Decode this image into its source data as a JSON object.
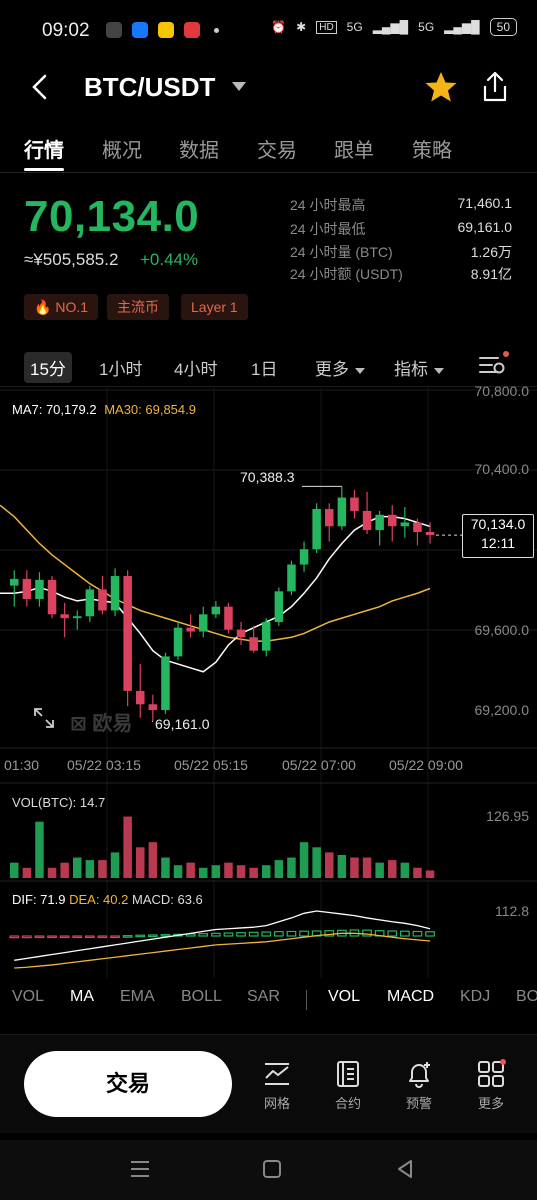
{
  "status_bar": {
    "time": "09:02",
    "battery": "50",
    "network": "5G"
  },
  "header": {
    "pair": "BTC/USDT"
  },
  "tabs": [
    "行情",
    "概况",
    "数据",
    "交易",
    "跟单",
    "策略"
  ],
  "price": {
    "last": "70,134.0",
    "fiat": "≈¥505,585.2",
    "change_pct": "+0.44%",
    "up_color": "#25b660",
    "down_color": "#d9435f"
  },
  "stats": [
    {
      "label": "24 小时最高",
      "value": "71,460.1"
    },
    {
      "label": "24 小时最低",
      "value": "69,161.0"
    },
    {
      "label": "24 小时量 (BTC)",
      "value": "1.26万"
    },
    {
      "label": "24 小时额 (USDT)",
      "value": "8.91亿"
    }
  ],
  "badges": [
    "NO.1",
    "主流币",
    "Layer 1"
  ],
  "intervals": {
    "items": [
      "15分",
      "1小时",
      "4小时",
      "1日"
    ],
    "more": "更多",
    "indicator": "指标"
  },
  "ma_legend": {
    "ma7": "MA7: 70,179.2",
    "ma30": "MA30: 69,854.9"
  },
  "price_axis": [
    "70,800.0",
    "70,400.0",
    "69,600.0",
    "69,200.0"
  ],
  "last_price_tag": {
    "price": "70,134.0",
    "countdown": "12:11"
  },
  "annotations": {
    "high": "70,388.3",
    "low": "69,161.0"
  },
  "watermark": "欧易",
  "time_axis": [
    "01:30",
    "05/22 03:15",
    "05/22 05:15",
    "05/22 07:00",
    "05/22 09:00"
  ],
  "vol": {
    "label": "VOL(BTC): 14.7",
    "axis_max": "126.95"
  },
  "macd": {
    "dif": "DIF: 71.9",
    "dea": "DEA: 40.2",
    "macd": "MACD: 63.6",
    "axis_max": "112.8"
  },
  "indicator_tabs": [
    "VOL",
    "MA",
    "EMA",
    "BOLL",
    "SAR",
    "VOL",
    "MACD",
    "KDJ",
    "BO"
  ],
  "bottom_bar": {
    "trade": "交易",
    "items": [
      {
        "icon": "grid-chart-icon",
        "label": "网格"
      },
      {
        "icon": "contract-icon",
        "label": "合约"
      },
      {
        "icon": "alert-bell-icon",
        "label": "预警"
      },
      {
        "icon": "more-apps-icon",
        "label": "更多"
      }
    ]
  },
  "chart_data": {
    "type": "candlestick",
    "interval": "15m",
    "title": "",
    "ylim": [
      69100,
      70850
    ],
    "candles": [
      {
        "o": 69870,
        "h": 69950,
        "l": 69760,
        "c": 69905
      },
      {
        "o": 69905,
        "h": 69950,
        "l": 69760,
        "c": 69800
      },
      {
        "o": 69800,
        "h": 69940,
        "l": 69760,
        "c": 69900
      },
      {
        "o": 69900,
        "h": 69920,
        "l": 69700,
        "c": 69720
      },
      {
        "o": 69720,
        "h": 69780,
        "l": 69600,
        "c": 69700
      },
      {
        "o": 69700,
        "h": 69740,
        "l": 69640,
        "c": 69710
      },
      {
        "o": 69710,
        "h": 69870,
        "l": 69680,
        "c": 69850
      },
      {
        "o": 69850,
        "h": 69920,
        "l": 69720,
        "c": 69740
      },
      {
        "o": 69740,
        "h": 69960,
        "l": 69710,
        "c": 69920
      },
      {
        "o": 69920,
        "h": 69950,
        "l": 69240,
        "c": 69320
      },
      {
        "o": 69320,
        "h": 69460,
        "l": 69180,
        "c": 69250
      },
      {
        "o": 69250,
        "h": 69300,
        "l": 69161,
        "c": 69220
      },
      {
        "o": 69220,
        "h": 69520,
        "l": 69200,
        "c": 69500
      },
      {
        "o": 69500,
        "h": 69680,
        "l": 69480,
        "c": 69650
      },
      {
        "o": 69650,
        "h": 69720,
        "l": 69600,
        "c": 69630
      },
      {
        "o": 69630,
        "h": 69760,
        "l": 69600,
        "c": 69720
      },
      {
        "o": 69720,
        "h": 69790,
        "l": 69700,
        "c": 69760
      },
      {
        "o": 69760,
        "h": 69780,
        "l": 69620,
        "c": 69640
      },
      {
        "o": 69640,
        "h": 69680,
        "l": 69560,
        "c": 69600
      },
      {
        "o": 69600,
        "h": 69660,
        "l": 69520,
        "c": 69530
      },
      {
        "o": 69530,
        "h": 69700,
        "l": 69500,
        "c": 69680
      },
      {
        "o": 69680,
        "h": 69860,
        "l": 69660,
        "c": 69840
      },
      {
        "o": 69840,
        "h": 70000,
        "l": 69820,
        "c": 69980
      },
      {
        "o": 69980,
        "h": 70100,
        "l": 69940,
        "c": 70060
      },
      {
        "o": 70060,
        "h": 70300,
        "l": 70040,
        "c": 70270
      },
      {
        "o": 70270,
        "h": 70300,
        "l": 70100,
        "c": 70180
      },
      {
        "o": 70180,
        "h": 70388.3,
        "l": 70160,
        "c": 70330
      },
      {
        "o": 70330,
        "h": 70370,
        "l": 70220,
        "c": 70260
      },
      {
        "o": 70260,
        "h": 70360,
        "l": 70140,
        "c": 70160
      },
      {
        "o": 70160,
        "h": 70260,
        "l": 70080,
        "c": 70240
      },
      {
        "o": 70240,
        "h": 70290,
        "l": 70100,
        "c": 70180
      },
      {
        "o": 70180,
        "h": 70280,
        "l": 70120,
        "c": 70200
      },
      {
        "o": 70200,
        "h": 70220,
        "l": 70080,
        "c": 70150
      },
      {
        "o": 70150,
        "h": 70200,
        "l": 70090,
        "c": 70134
      }
    ],
    "ma7": [
      69830,
      69840,
      69860,
      69840,
      69810,
      69790,
      69800,
      69790,
      69780,
      69700,
      69620,
      69530,
      69480,
      69460,
      69440,
      69420,
      69470,
      69560,
      69620,
      69650,
      69680,
      69710,
      69760,
      69830,
      69910,
      70010,
      70090,
      70160,
      70200,
      70230,
      70230,
      70220,
      70200,
      70179.2
    ],
    "ma30": [
      70230,
      70160,
      70090,
      70030,
      69980,
      69930,
      69880,
      69840,
      69800,
      69770,
      69740,
      69720,
      69700,
      69680,
      69660,
      69640,
      69620,
      69600,
      69590,
      69580,
      69580,
      69590,
      69600,
      69620,
      69650,
      69680,
      69700,
      69720,
      69740,
      69760,
      69790,
      69810,
      69830,
      69854.9
    ],
    "volume": [
      30,
      20,
      110,
      20,
      30,
      40,
      35,
      35,
      50,
      120,
      60,
      70,
      40,
      25,
      30,
      20,
      25,
      30,
      25,
      20,
      25,
      35,
      40,
      70,
      60,
      50,
      45,
      40,
      40,
      30,
      35,
      30,
      20,
      14.7
    ],
    "volume_max": 126.95,
    "macd_hist": [
      -25,
      -25,
      -22,
      -20,
      -18,
      -15,
      -10,
      -8,
      -5,
      5,
      12,
      15,
      20,
      25,
      30,
      35,
      40,
      45,
      50,
      55,
      60,
      65,
      68,
      72,
      75,
      80,
      85,
      90,
      88,
      80,
      75,
      72,
      68,
      63.6
    ],
    "dif": [
      -10,
      -5,
      0,
      5,
      10,
      15,
      20,
      25,
      30,
      35,
      40,
      45,
      50,
      55,
      60,
      65,
      70,
      72,
      74,
      76,
      80,
      90,
      100,
      112,
      118,
      114,
      110,
      106,
      100,
      95,
      90,
      86,
      80,
      71.9
    ],
    "dea": [
      -30,
      -28,
      -25,
      -22,
      -18,
      -14,
      -10,
      -6,
      -2,
      2,
      6,
      10,
      14,
      18,
      22,
      26,
      30,
      32,
      34,
      36,
      38,
      42,
      46,
      50,
      54,
      57,
      60,
      60,
      58,
      54,
      50,
      46,
      43,
      40.2
    ],
    "macd_max": 112.8
  }
}
